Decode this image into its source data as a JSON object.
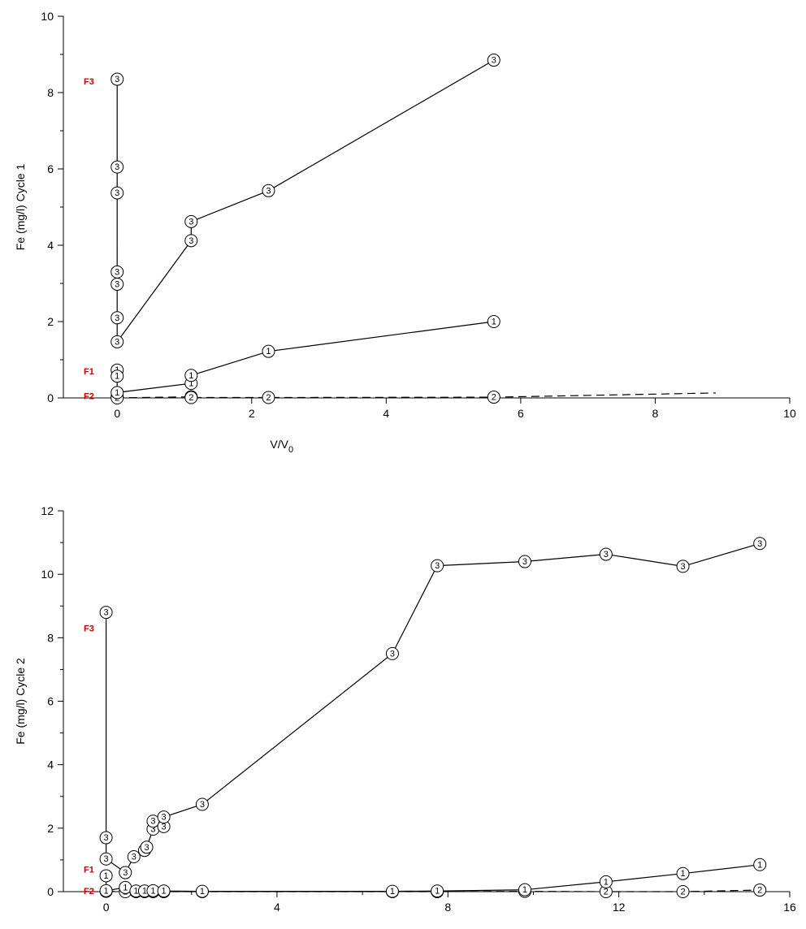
{
  "chart_data": [
    {
      "type": "line",
      "xlabel": "V/V0",
      "xlabel_main": "V/V",
      "xlabel_sub": "0",
      "ylabel": "Fe (mg/l) Cycle 1",
      "xlim": [
        -0.8,
        10
      ],
      "ylim": [
        0,
        10
      ],
      "xticks": [
        0,
        2,
        4,
        6,
        8,
        10
      ],
      "yticks": [
        0,
        2,
        4,
        6,
        8,
        10
      ],
      "grid": false,
      "legend": "none",
      "annotations": [
        {
          "text": "F3",
          "x": -0.4,
          "y": 8.3,
          "color": "#cc0000"
        },
        {
          "text": "F1",
          "x": -0.4,
          "y": 0.7,
          "color": "#cc0000"
        },
        {
          "text": "F2",
          "x": -0.4,
          "y": 0.05,
          "color": "#cc0000"
        }
      ],
      "series": [
        {
          "marker": "3",
          "style": "solid",
          "x": [
            0,
            0,
            0,
            0,
            0,
            0,
            0,
            1.1,
            1.1,
            2.25,
            5.6
          ],
          "y": [
            8.35,
            6.05,
            5.37,
            3.3,
            2.98,
            2.1,
            1.47,
            4.12,
            4.62,
            5.43,
            8.85
          ]
        },
        {
          "marker": "1",
          "style": "solid",
          "x": [
            0,
            0,
            0,
            1.1,
            1.1,
            2.25,
            5.6
          ],
          "y": [
            0.73,
            0.57,
            0.14,
            0.38,
            0.59,
            1.22,
            2.0
          ]
        },
        {
          "marker": "2",
          "style": "dashed",
          "x": [
            0,
            0,
            1.1,
            1.1,
            2.25,
            5.6,
            8.9
          ],
          "y": [
            0.03,
            0.0,
            0.03,
            0.01,
            0.01,
            0.02,
            0.13
          ]
        }
      ]
    },
    {
      "type": "line",
      "xlabel": "",
      "ylabel": "Fe (mg/l) Cycle 2",
      "xlim": [
        -1,
        16
      ],
      "ylim": [
        0,
        12
      ],
      "xticks": [
        0,
        4,
        8,
        12,
        16
      ],
      "yticks": [
        0,
        2,
        4,
        6,
        8,
        10,
        12
      ],
      "grid": false,
      "legend": "none",
      "annotations": [
        {
          "text": "F3",
          "x": -0.4,
          "y": 8.3,
          "color": "#cc0000"
        },
        {
          "text": "F1",
          "x": -0.4,
          "y": 0.7,
          "color": "#cc0000"
        },
        {
          "text": "F2",
          "x": -0.4,
          "y": 0.02,
          "color": "#cc0000"
        }
      ],
      "series": [
        {
          "marker": "3",
          "style": "solid",
          "x": [
            0,
            0,
            0,
            0.45,
            0.65,
            0.9,
            0.95,
            1.1,
            1.1,
            1.35,
            1.35,
            2.25,
            6.7,
            7.75,
            9.8,
            11.7,
            13.5,
            15.3
          ],
          "y": [
            8.8,
            1.7,
            1.03,
            0.6,
            1.1,
            1.3,
            1.4,
            1.97,
            2.22,
            2.05,
            2.35,
            2.75,
            7.5,
            10.27,
            10.4,
            10.63,
            10.25,
            10.97
          ]
        },
        {
          "marker": "1",
          "style": "solid",
          "x": [
            0,
            0,
            0.45,
            0.7,
            0.9,
            1.1,
            1.35,
            2.25,
            6.7,
            7.75,
            9.8,
            11.7,
            13.5,
            15.3
          ],
          "y": [
            0.5,
            0.03,
            0.13,
            0.02,
            0.02,
            0.03,
            0.02,
            0.01,
            0.01,
            0.02,
            0.06,
            0.31,
            0.57,
            0.85
          ]
        },
        {
          "marker": "2",
          "style": "dashed",
          "x": [
            0,
            0.45,
            0.7,
            0.9,
            1.1,
            1.35,
            2.25,
            6.7,
            7.75,
            9.8,
            11.7,
            13.5,
            15.3
          ],
          "y": [
            0.01,
            0.0,
            0.0,
            0.0,
            0.0,
            0.0,
            0.0,
            0.0,
            0.0,
            0.01,
            0.0,
            0.0,
            0.05
          ]
        }
      ]
    }
  ]
}
